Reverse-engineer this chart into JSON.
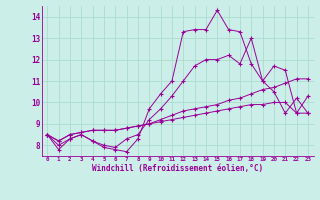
{
  "xlabel": "Windchill (Refroidissement éolien,°C)",
  "background_color": "#cceee8",
  "line_color": "#990099",
  "grid_color": "#aaddcc",
  "xlim": [
    -0.5,
    23.5
  ],
  "ylim": [
    7.5,
    14.5
  ],
  "yticks": [
    8,
    9,
    10,
    11,
    12,
    13,
    14
  ],
  "xticks": [
    0,
    1,
    2,
    3,
    4,
    5,
    6,
    7,
    8,
    9,
    10,
    11,
    12,
    13,
    14,
    15,
    16,
    17,
    18,
    19,
    20,
    21,
    22,
    23
  ],
  "series": [
    [
      8.5,
      7.8,
      8.3,
      8.5,
      8.2,
      7.9,
      7.8,
      7.7,
      8.3,
      9.7,
      10.4,
      11.0,
      13.3,
      13.4,
      13.4,
      14.3,
      13.4,
      13.3,
      11.8,
      11.0,
      10.5,
      9.5,
      10.2,
      9.5
    ],
    [
      8.5,
      8.0,
      8.3,
      8.5,
      8.2,
      8.0,
      7.9,
      8.3,
      8.5,
      9.2,
      9.7,
      10.3,
      11.0,
      11.7,
      12.0,
      12.0,
      12.2,
      11.8,
      13.0,
      11.0,
      11.7,
      11.5,
      9.5,
      10.3
    ],
    [
      8.5,
      8.2,
      8.5,
      8.6,
      8.7,
      8.7,
      8.7,
      8.8,
      8.9,
      9.0,
      9.2,
      9.4,
      9.6,
      9.7,
      9.8,
      9.9,
      10.1,
      10.2,
      10.4,
      10.6,
      10.7,
      10.9,
      11.1,
      11.1
    ],
    [
      8.5,
      8.2,
      8.5,
      8.6,
      8.7,
      8.7,
      8.7,
      8.8,
      8.9,
      9.0,
      9.1,
      9.2,
      9.3,
      9.4,
      9.5,
      9.6,
      9.7,
      9.8,
      9.9,
      9.9,
      10.0,
      10.0,
      9.5,
      9.5
    ]
  ]
}
